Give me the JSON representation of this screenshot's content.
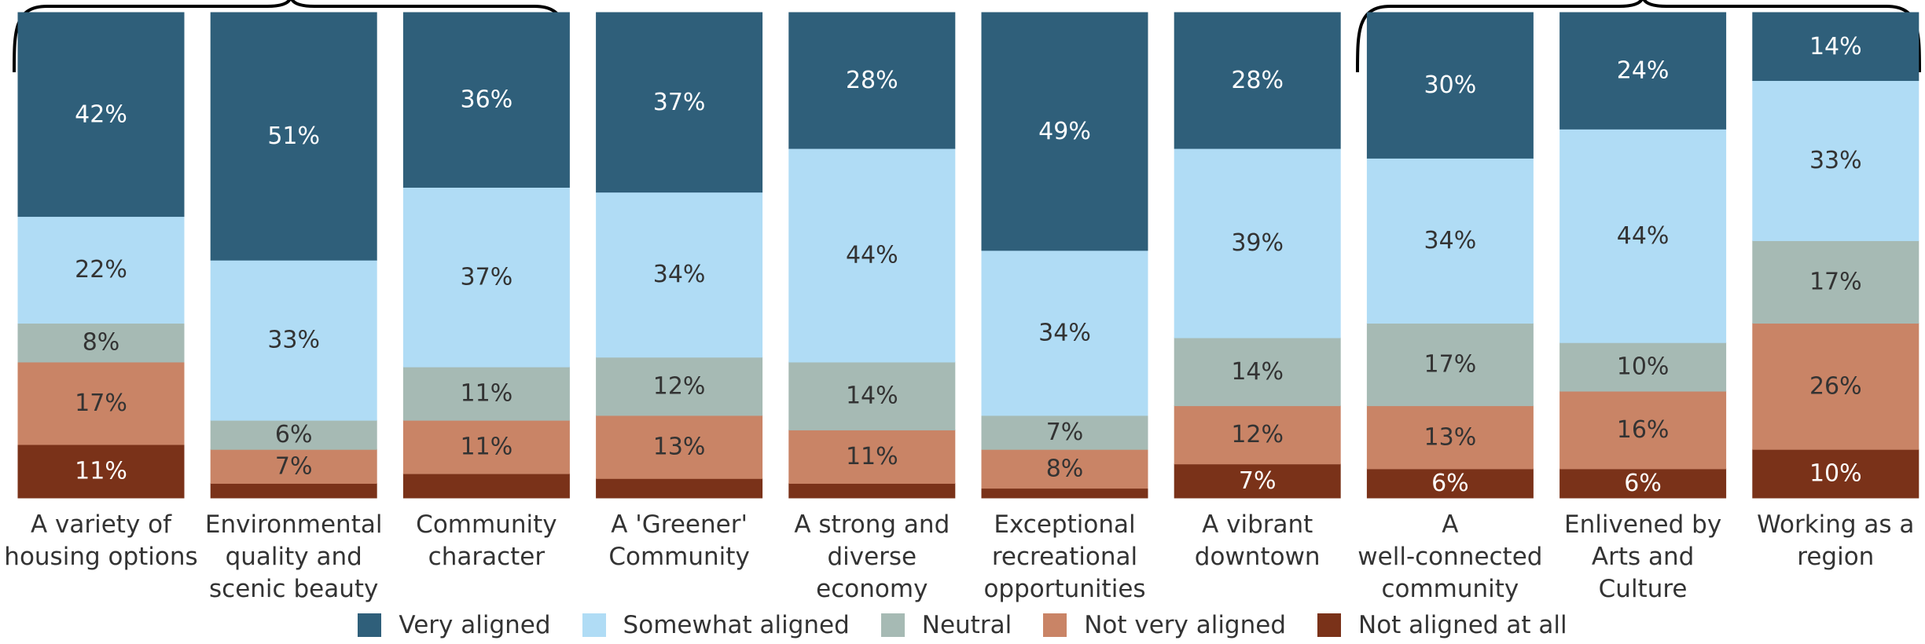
{
  "chart_data": {
    "type": "stacked_bar",
    "categories": [
      "A variety of\nhousing options",
      "Environmental\nquality and\nscenic beauty",
      "Community\ncharacter",
      "A 'Greener'\nCommunity",
      "A strong and\ndiverse economy",
      "Exceptional\nrecreational\nopportunities",
      "A vibrant\ndowntown",
      "A\nwell-connected\ncommunity",
      "Enlivened by\nArts and\nCulture",
      "Working as a\nregion"
    ],
    "ylim": [
      0,
      100
    ],
    "series": [
      {
        "name": "Very aligned",
        "color": "#2f5f7a",
        "values": [
          42,
          51,
          36,
          37,
          28,
          49,
          28,
          30,
          24,
          14
        ],
        "value_labels": [
          "42%",
          "51%",
          "36%",
          "37%",
          "28%",
          "49%",
          "28%",
          "30%",
          "24%",
          "14%"
        ]
      },
      {
        "name": "Somewhat aligned",
        "color": "#b0dcf5",
        "values": [
          22,
          33,
          37,
          34,
          44,
          34,
          39,
          34,
          44,
          33
        ],
        "value_labels": [
          "22%",
          "33%",
          "37%",
          "34%",
          "44%",
          "34%",
          "39%",
          "34%",
          "44%",
          "33%"
        ]
      },
      {
        "name": "Neutral",
        "color": "#a6bab4",
        "values": [
          8,
          6,
          11,
          12,
          14,
          7,
          14,
          17,
          10,
          17
        ],
        "value_labels": [
          "8%",
          "6%",
          "11%",
          "12%",
          "14%",
          "7%",
          "14%",
          "17%",
          "10%",
          "17%"
        ]
      },
      {
        "name": "Not very aligned",
        "color": "#c98466",
        "values": [
          17,
          7,
          11,
          13,
          11,
          8,
          12,
          13,
          16,
          26
        ],
        "value_labels": [
          "17%",
          "7%",
          "11%",
          "13%",
          "11%",
          "8%",
          "12%",
          "13%",
          "16%",
          "26%"
        ]
      },
      {
        "name": "Not aligned at all",
        "color": "#7a3219",
        "values": [
          11,
          3,
          5,
          4,
          3,
          2,
          7,
          6,
          6,
          10
        ],
        "value_labels": [
          "11%",
          null,
          null,
          null,
          null,
          null,
          "7%",
          "6%",
          "6%",
          "10%"
        ]
      }
    ]
  }
}
